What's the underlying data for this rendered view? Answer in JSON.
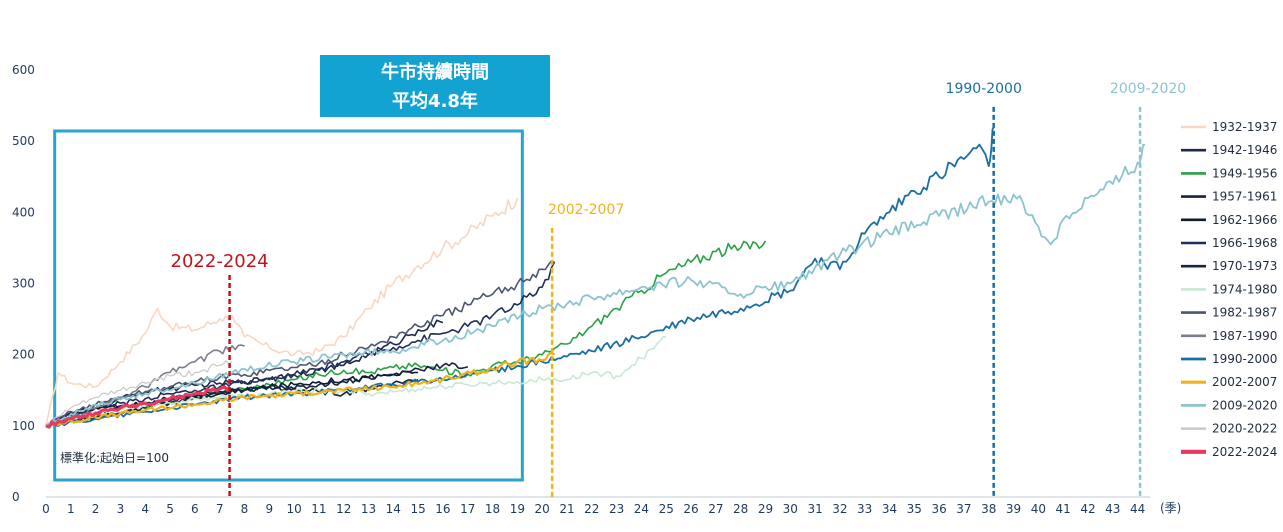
{
  "chart_data": {
    "type": "line",
    "x_unit_label": "(季)",
    "xlim": [
      0,
      44.5
    ],
    "ylim": [
      0,
      600
    ],
    "x_ticks": [
      0,
      1,
      2,
      3,
      4,
      5,
      6,
      7,
      8,
      9,
      10,
      11,
      12,
      13,
      14,
      15,
      16,
      17,
      18,
      19,
      20,
      21,
      22,
      23,
      24,
      25,
      26,
      27,
      28,
      29,
      30,
      31,
      32,
      33,
      34,
      35,
      36,
      37,
      38,
      39,
      40,
      41,
      42,
      43,
      44
    ],
    "y_ticks": [
      0,
      100,
      200,
      300,
      400,
      500,
      600
    ],
    "info_box": {
      "line1": "牛市持續時間",
      "line2": "平均4.8年"
    },
    "normalization_note": "標準化:起始日=100",
    "highlight_box_x": [
      0.35,
      19.2
    ],
    "markers": [
      {
        "label": "2022-2024",
        "x": 7.4,
        "y_top": 312,
        "color": "#c0151d"
      },
      {
        "label": "2002-2007",
        "x": 20.4,
        "y_top": 395,
        "color": "#f0b21b"
      },
      {
        "label": "1990-2000",
        "x": 38.2,
        "y_top": 565,
        "color": "#1b6fa3"
      },
      {
        "label": "2009-2020",
        "x": 44.1,
        "y_top": 565,
        "color": "#8cc4d0"
      }
    ],
    "series": [
      {
        "name": "1932-1937",
        "color": "#f8d7c2",
        "width": 1.6,
        "points": [
          [
            0,
            100
          ],
          [
            0.5,
            175
          ],
          [
            1,
            160
          ],
          [
            2,
            155
          ],
          [
            3,
            190
          ],
          [
            4,
            230
          ],
          [
            4.5,
            265
          ],
          [
            5,
            240
          ],
          [
            6,
            235
          ],
          [
            7,
            250
          ],
          [
            7.5,
            255
          ],
          [
            8,
            225
          ],
          [
            9,
            210
          ],
          [
            10,
            200
          ],
          [
            11,
            205
          ],
          [
            12,
            225
          ],
          [
            13,
            265
          ],
          [
            14,
            300
          ],
          [
            15,
            325
          ],
          [
            16,
            350
          ],
          [
            17,
            370
          ],
          [
            18,
            395
          ],
          [
            19,
            420
          ]
        ]
      },
      {
        "name": "1942-1946",
        "color": "#1b2a4a",
        "width": 1.6,
        "points": [
          [
            0,
            100
          ],
          [
            1,
            110
          ],
          [
            2,
            125
          ],
          [
            3,
            138
          ],
          [
            4,
            148
          ],
          [
            5,
            152
          ],
          [
            6,
            157
          ],
          [
            7,
            160
          ],
          [
            8,
            162
          ],
          [
            9,
            167
          ],
          [
            10,
            172
          ],
          [
            11,
            178
          ],
          [
            12,
            185
          ],
          [
            13,
            200
          ],
          [
            14,
            215
          ],
          [
            15,
            235
          ],
          [
            16,
            245
          ]
        ]
      },
      {
        "name": "1949-1956",
        "color": "#2aa145",
        "width": 1.6,
        "points": [
          [
            0,
            100
          ],
          [
            1,
            106
          ],
          [
            2,
            112
          ],
          [
            3,
            118
          ],
          [
            4,
            125
          ],
          [
            5,
            132
          ],
          [
            6,
            140
          ],
          [
            7,
            148
          ],
          [
            8,
            152
          ],
          [
            9,
            158
          ],
          [
            10,
            165
          ],
          [
            11,
            172
          ],
          [
            12,
            178
          ],
          [
            13,
            175
          ],
          [
            14,
            182
          ],
          [
            15,
            185
          ],
          [
            16,
            178
          ],
          [
            17,
            172
          ],
          [
            18,
            185
          ],
          [
            19,
            190
          ],
          [
            20,
            200
          ],
          [
            21,
            215
          ],
          [
            22,
            240
          ],
          [
            23,
            265
          ],
          [
            24,
            290
          ],
          [
            25,
            315
          ],
          [
            26,
            330
          ],
          [
            27,
            345
          ],
          [
            28,
            350
          ],
          [
            29,
            360
          ]
        ]
      },
      {
        "name": "1957-1961",
        "color": "#17223b",
        "width": 1.6,
        "points": [
          [
            0,
            100
          ],
          [
            1,
            108
          ],
          [
            2,
            118
          ],
          [
            3,
            125
          ],
          [
            4,
            132
          ],
          [
            5,
            138
          ],
          [
            6,
            142
          ],
          [
            7,
            148
          ],
          [
            8,
            150
          ],
          [
            9,
            155
          ],
          [
            10,
            152
          ],
          [
            11,
            158
          ],
          [
            12,
            162
          ],
          [
            13,
            168
          ],
          [
            14,
            172
          ],
          [
            15,
            180
          ],
          [
            16,
            185
          ],
          [
            17,
            183
          ]
        ]
      },
      {
        "name": "1962-1966",
        "color": "#0f1d33",
        "width": 1.6,
        "points": [
          [
            0,
            100
          ],
          [
            1,
            118
          ],
          [
            2,
            125
          ],
          [
            3,
            128
          ],
          [
            4,
            132
          ],
          [
            5,
            135
          ],
          [
            6,
            140
          ],
          [
            7,
            145
          ],
          [
            8,
            150
          ],
          [
            9,
            155
          ],
          [
            10,
            158
          ],
          [
            11,
            162
          ],
          [
            12,
            165
          ],
          [
            13,
            168
          ],
          [
            14,
            172
          ],
          [
            15,
            175
          ]
        ]
      },
      {
        "name": "1966-1968",
        "color": "#1f2f56",
        "width": 1.6,
        "points": [
          [
            0,
            100
          ],
          [
            1,
            115
          ],
          [
            2,
            125
          ],
          [
            3,
            132
          ],
          [
            4,
            138
          ],
          [
            5,
            145
          ],
          [
            6,
            150
          ],
          [
            7,
            155
          ],
          [
            8,
            160
          ],
          [
            9,
            165
          ],
          [
            10,
            172
          ],
          [
            11,
            180
          ],
          [
            12,
            190
          ],
          [
            13,
            200
          ],
          [
            14,
            210
          ],
          [
            15,
            220
          ],
          [
            16,
            230
          ],
          [
            17,
            240
          ],
          [
            18,
            255
          ],
          [
            19,
            270
          ],
          [
            20,
            295
          ],
          [
            20.5,
            330
          ]
        ]
      },
      {
        "name": "1970-1973",
        "color": "#162640",
        "width": 1.6,
        "points": [
          [
            0,
            100
          ],
          [
            1,
            108
          ],
          [
            2,
            112
          ],
          [
            3,
            118
          ],
          [
            4,
            125
          ],
          [
            5,
            132
          ],
          [
            6,
            140
          ],
          [
            7,
            145
          ],
          [
            8,
            150
          ],
          [
            9,
            155
          ],
          [
            10,
            152
          ],
          [
            11,
            148
          ],
          [
            12,
            145
          ],
          [
            13,
            152
          ],
          [
            14,
            160
          ],
          [
            15,
            165
          ]
        ]
      },
      {
        "name": "1974-1980",
        "color": "#c8e8d3",
        "width": 1.6,
        "points": [
          [
            0,
            100
          ],
          [
            1,
            110
          ],
          [
            2,
            118
          ],
          [
            3,
            125
          ],
          [
            4,
            128
          ],
          [
            5,
            132
          ],
          [
            6,
            138
          ],
          [
            7,
            140
          ],
          [
            8,
            142
          ],
          [
            9,
            145
          ],
          [
            10,
            148
          ],
          [
            11,
            150
          ],
          [
            12,
            148
          ],
          [
            13,
            145
          ],
          [
            14,
            148
          ],
          [
            15,
            152
          ],
          [
            16,
            155
          ],
          [
            17,
            158
          ],
          [
            18,
            160
          ],
          [
            19,
            162
          ],
          [
            20,
            165
          ],
          [
            21,
            165
          ],
          [
            22,
            175
          ],
          [
            23,
            170
          ],
          [
            24,
            195
          ],
          [
            25,
            225
          ]
        ]
      },
      {
        "name": "1982-1987",
        "color": "#4b5673",
        "width": 1.6,
        "points": [
          [
            0,
            100
          ],
          [
            1,
            120
          ],
          [
            2,
            130
          ],
          [
            3,
            140
          ],
          [
            4,
            148
          ],
          [
            5,
            155
          ],
          [
            6,
            162
          ],
          [
            7,
            168
          ],
          [
            8,
            172
          ],
          [
            9,
            178
          ],
          [
            10,
            182
          ],
          [
            11,
            188
          ],
          [
            12,
            200
          ],
          [
            13,
            210
          ],
          [
            14,
            225
          ],
          [
            15,
            240
          ],
          [
            16,
            255
          ],
          [
            17,
            270
          ],
          [
            18,
            285
          ],
          [
            19,
            300
          ],
          [
            20,
            320
          ],
          [
            20.5,
            330
          ]
        ]
      },
      {
        "name": "1987-1990",
        "color": "#7a7f8c",
        "width": 1.6,
        "points": [
          [
            0,
            100
          ],
          [
            1,
            112
          ],
          [
            2,
            125
          ],
          [
            3,
            140
          ],
          [
            4,
            155
          ],
          [
            5,
            175
          ],
          [
            6,
            190
          ],
          [
            7,
            205
          ],
          [
            8,
            212
          ]
        ]
      },
      {
        "name": "1990-2000",
        "color": "#1b6fa3",
        "width": 1.8,
        "points": [
          [
            0,
            100
          ],
          [
            2,
            110
          ],
          [
            4,
            120
          ],
          [
            6,
            130
          ],
          [
            8,
            140
          ],
          [
            10,
            145
          ],
          [
            12,
            150
          ],
          [
            14,
            158
          ],
          [
            16,
            165
          ],
          [
            18,
            178
          ],
          [
            20,
            190
          ],
          [
            22,
            205
          ],
          [
            24,
            225
          ],
          [
            26,
            250
          ],
          [
            28,
            265
          ],
          [
            30,
            290
          ],
          [
            31,
            335
          ],
          [
            32,
            320
          ],
          [
            33,
            370
          ],
          [
            34,
            400
          ],
          [
            35,
            430
          ],
          [
            36,
            450
          ],
          [
            37,
            475
          ],
          [
            37.5,
            490
          ],
          [
            38,
            465
          ],
          [
            38.2,
            520
          ]
        ]
      },
      {
        "name": "2002-2007",
        "color": "#f0b21b",
        "width": 2.2,
        "points": [
          [
            0,
            100
          ],
          [
            2,
            112
          ],
          [
            4,
            122
          ],
          [
            6,
            130
          ],
          [
            8,
            140
          ],
          [
            10,
            145
          ],
          [
            12,
            150
          ],
          [
            14,
            155
          ],
          [
            16,
            165
          ],
          [
            18,
            180
          ],
          [
            19,
            190
          ],
          [
            20,
            192
          ],
          [
            20.5,
            200
          ]
        ]
      },
      {
        "name": "2009-2020",
        "color": "#8cc4d0",
        "width": 1.8,
        "points": [
          [
            0,
            100
          ],
          [
            2,
            130
          ],
          [
            4,
            145
          ],
          [
            6,
            160
          ],
          [
            8,
            180
          ],
          [
            10,
            190
          ],
          [
            12,
            200
          ],
          [
            14,
            205
          ],
          [
            16,
            220
          ],
          [
            18,
            240
          ],
          [
            20,
            265
          ],
          [
            22,
            280
          ],
          [
            24,
            295
          ],
          [
            26,
            305
          ],
          [
            28,
            285
          ],
          [
            30,
            300
          ],
          [
            32,
            340
          ],
          [
            34,
            370
          ],
          [
            36,
            395
          ],
          [
            38,
            415
          ],
          [
            39,
            425
          ],
          [
            40,
            380
          ],
          [
            40.5,
            355
          ],
          [
            41,
            390
          ],
          [
            42,
            420
          ],
          [
            43,
            440
          ],
          [
            44,
            470
          ],
          [
            44.3,
            495
          ]
        ]
      },
      {
        "name": "2020-2022",
        "color": "#c9c9c9",
        "width": 1.2,
        "points": [
          [
            0,
            100
          ],
          [
            1,
            125
          ],
          [
            2,
            140
          ],
          [
            3,
            150
          ],
          [
            4,
            160
          ],
          [
            5,
            170
          ],
          [
            6,
            175
          ],
          [
            7,
            185
          ],
          [
            7.5,
            190
          ]
        ]
      },
      {
        "name": "2022-2024",
        "color": "#e63a63",
        "width": 3.2,
        "points": [
          [
            0,
            100
          ],
          [
            1,
            110
          ],
          [
            2,
            118
          ],
          [
            3,
            125
          ],
          [
            4,
            132
          ],
          [
            5,
            138
          ],
          [
            6,
            145
          ],
          [
            7,
            152
          ],
          [
            7.4,
            155
          ]
        ]
      }
    ]
  }
}
